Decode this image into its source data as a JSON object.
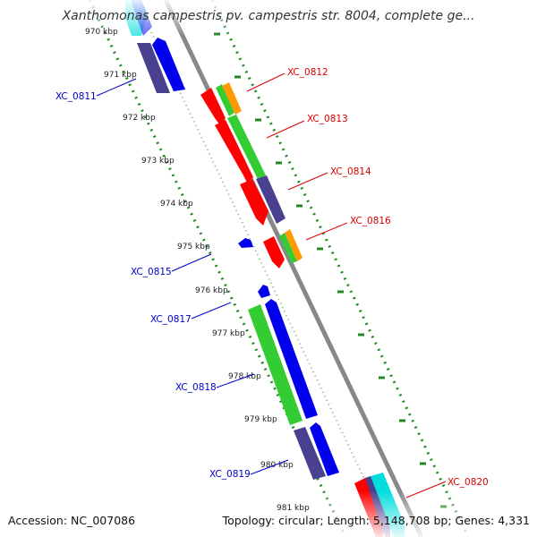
{
  "title": "Xanthomonas campestris pv. campestris str. 8004, complete ge...",
  "footer": {
    "accession": "Accession: NC_007086",
    "topology": "Topology: circular; Length: 5,148,708 bp; Genes: 4,331"
  },
  "ticks": [
    "970 kbp",
    "971 kbp",
    "972 kbp",
    "973 kbp",
    "974 kbp",
    "975 kbp",
    "976 kbp",
    "977 kbp",
    "978 kbp",
    "979 kbp",
    "980 kbp",
    "981 kbp"
  ],
  "genes_forward": [
    "XC_0812",
    "XC_0813",
    "XC_0814",
    "XC_0816",
    "XC_0820"
  ],
  "genes_reverse": [
    "XC_0811",
    "XC_0815",
    "XC_0817",
    "XC_0818",
    "XC_0819"
  ],
  "colors": {
    "forward_label": "#dd0000",
    "reverse_label": "#0000cc",
    "red": "#ff0000",
    "green": "#33cc33",
    "navy": "#4a4090",
    "blue": "#0000ee",
    "orange": "#ff9900",
    "cyan": "#00dddd",
    "backbone": "#888888",
    "ruler": "#228822"
  }
}
